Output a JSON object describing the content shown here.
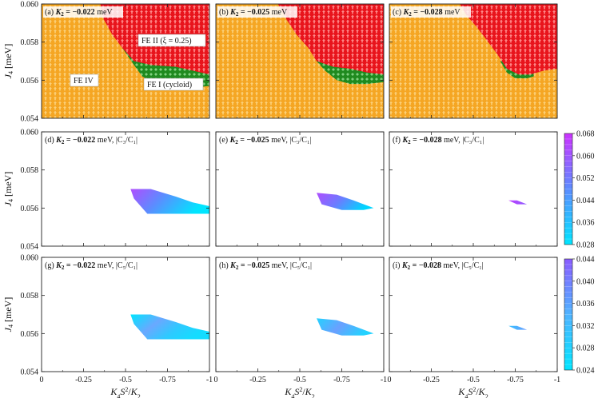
{
  "chart_data": {
    "type": "heatmap",
    "x_tick_labels": [
      "0",
      "-0.25",
      "-0.5",
      "-0.75",
      "-1"
    ],
    "x_range": [
      0,
      -1
    ],
    "xlabel": "K4S2/K2",
    "y_tick_labels": [
      "0.054",
      "0.056",
      "0.058",
      "0.060"
    ],
    "y_range": [
      0.054,
      0.06
    ],
    "ylabel": "J4 [meV]",
    "phase_labels": {
      "fe4": "FE IV",
      "fe2": "FE II (ξ = 0.25)",
      "fe1": "FE I (cycloid)"
    },
    "phase_colors": {
      "FE IV": "#f5a623",
      "FE II": "#e8141c",
      "FE I": "#1f8a1f"
    },
    "rows": [
      {
        "row": "phase",
        "panels": [
          {
            "label": "(a)",
            "K2_meV": -0.022,
            "fe2_lower_boundary": [
              [
                -0.35,
                0.06
              ],
              [
                -0.37,
                0.0592
              ],
              [
                -0.42,
                0.0584
              ],
              [
                -0.48,
                0.0577
              ],
              [
                -0.55,
                0.057
              ],
              [
                -0.65,
                0.0568
              ],
              [
                -0.8,
                0.0567
              ],
              [
                -0.9,
                0.0565
              ],
              [
                -1.0,
                0.0563
              ]
            ],
            "fe1_lower_boundary": [
              [
                -0.48,
                0.0577
              ],
              [
                -0.55,
                0.0568
              ],
              [
                -0.6,
                0.0562
              ],
              [
                -0.68,
                0.0558
              ],
              [
                -0.8,
                0.0556
              ],
              [
                -0.9,
                0.0556
              ],
              [
                -1.0,
                0.0557
              ]
            ]
          },
          {
            "label": "(b)",
            "K2_meV": -0.025,
            "fe2_lower_boundary": [
              [
                -0.37,
                0.06
              ],
              [
                -0.42,
                0.0592
              ],
              [
                -0.48,
                0.0584
              ],
              [
                -0.55,
                0.0577
              ],
              [
                -0.6,
                0.057
              ],
              [
                -0.7,
                0.0567
              ],
              [
                -0.8,
                0.0566
              ],
              [
                -0.9,
                0.0564
              ],
              [
                -1.0,
                0.0563
              ]
            ],
            "fe1_lower_boundary": [
              [
                -0.6,
                0.057
              ],
              [
                -0.65,
                0.0565
              ],
              [
                -0.72,
                0.056
              ],
              [
                -0.8,
                0.0558
              ],
              [
                -0.9,
                0.0558
              ],
              [
                -1.0,
                0.0559
              ]
            ]
          },
          {
            "label": "(c)",
            "K2_meV": -0.028,
            "fe2_lower_boundary": [
              [
                -0.42,
                0.06
              ],
              [
                -0.46,
                0.0594
              ],
              [
                -0.52,
                0.0588
              ],
              [
                -0.58,
                0.0581
              ],
              [
                -0.64,
                0.0574
              ],
              [
                -0.7,
                0.0566
              ],
              [
                -0.77,
                0.0563
              ],
              [
                -0.84,
                0.0563
              ],
              [
                -0.92,
                0.0565
              ],
              [
                -1.0,
                0.0566
              ]
            ],
            "fe1_lower_boundary": [
              [
                -0.66,
                0.057
              ],
              [
                -0.7,
                0.0564
              ],
              [
                -0.75,
                0.0561
              ],
              [
                -0.82,
                0.0561
              ],
              [
                -0.86,
                0.0562
              ]
            ]
          }
        ]
      },
      {
        "row": "ratio_C3_C1",
        "colorbar": {
          "min": 0.028,
          "max": 0.068,
          "ticks": [
            "0.028",
            "0.036",
            "0.044",
            "0.052",
            "0.060",
            "0.068"
          ],
          "color_low": "#00e5ff",
          "color_high": "#cc33ff"
        },
        "panels": [
          {
            "label": "(d)",
            "K2_meV": -0.022,
            "quantity": "|C3/C1|",
            "region": [
              [
                -0.53,
                0.057
              ],
              [
                -0.65,
                0.057
              ],
              [
                -0.8,
                0.0566
              ],
              [
                -0.9,
                0.0563
              ],
              [
                -1.0,
                0.0561
              ],
              [
                -1.0,
                0.0557
              ],
              [
                -0.8,
                0.0557
              ],
              [
                -0.63,
                0.0557
              ],
              [
                -0.55,
                0.0565
              ]
            ],
            "value_high": 0.066,
            "value_low": 0.03
          },
          {
            "label": "(e)",
            "K2_meV": -0.025,
            "quantity": "|C3/C1|",
            "region": [
              [
                -0.6,
                0.0568
              ],
              [
                -0.72,
                0.0567
              ],
              [
                -0.82,
                0.0564
              ],
              [
                -0.94,
                0.056
              ],
              [
                -0.88,
                0.0559
              ],
              [
                -0.75,
                0.0559
              ],
              [
                -0.63,
                0.0562
              ]
            ],
            "value_high": 0.064,
            "value_low": 0.031
          },
          {
            "label": "(f)",
            "K2_meV": -0.028,
            "quantity": "|C3/C1|",
            "region": [
              [
                -0.71,
                0.0564
              ],
              [
                -0.76,
                0.0564
              ],
              [
                -0.82,
                0.0562
              ],
              [
                -0.76,
                0.0562
              ]
            ],
            "value_high": 0.065,
            "value_low": 0.05
          }
        ]
      },
      {
        "row": "ratio_C5_C1",
        "colorbar": {
          "min": 0.024,
          "max": 0.044,
          "ticks": [
            "0.024",
            "0.028",
            "0.032",
            "0.036",
            "0.040",
            "0.044"
          ],
          "color_low": "#00e5ff",
          "color_high": "#8a5cff"
        },
        "panels": [
          {
            "label": "(g)",
            "K2_meV": -0.022,
            "quantity": "|C5/C1|",
            "region": [
              [
                -0.53,
                0.057
              ],
              [
                -0.65,
                0.057
              ],
              [
                -0.8,
                0.0566
              ],
              [
                -0.9,
                0.0563
              ],
              [
                -1.0,
                0.0561
              ],
              [
                -1.0,
                0.0557
              ],
              [
                -0.8,
                0.0557
              ],
              [
                -0.63,
                0.0557
              ],
              [
                -0.55,
                0.0565
              ]
            ],
            "value_high": 0.033,
            "value_low": 0.027
          },
          {
            "label": "(h)",
            "K2_meV": -0.025,
            "quantity": "|C5/C1|",
            "region": [
              [
                -0.6,
                0.0568
              ],
              [
                -0.72,
                0.0567
              ],
              [
                -0.82,
                0.0564
              ],
              [
                -0.94,
                0.056
              ],
              [
                -0.88,
                0.0559
              ],
              [
                -0.75,
                0.0559
              ],
              [
                -0.63,
                0.0562
              ]
            ],
            "value_high": 0.034,
            "value_low": 0.03
          },
          {
            "label": "(i)",
            "K2_meV": -0.028,
            "quantity": "|C5/C1|",
            "region": [
              [
                -0.71,
                0.0564
              ],
              [
                -0.76,
                0.0564
              ],
              [
                -0.82,
                0.0562
              ],
              [
                -0.76,
                0.0562
              ]
            ],
            "value_high": 0.033,
            "value_low": 0.03
          }
        ]
      }
    ]
  }
}
